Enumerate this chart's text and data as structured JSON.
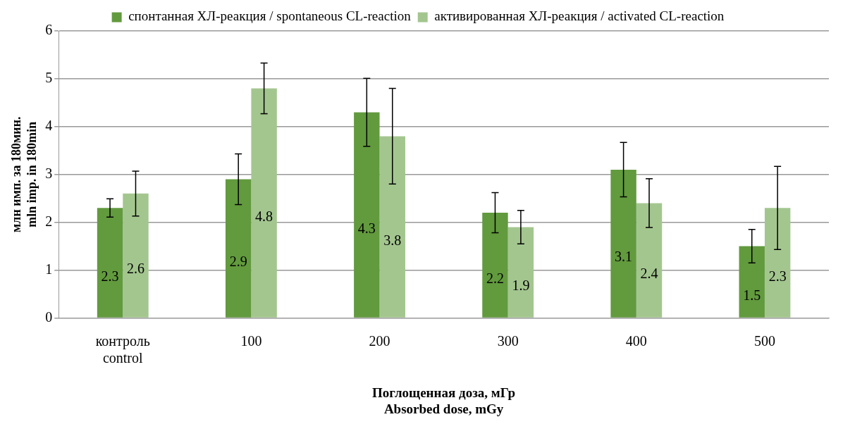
{
  "chart_data": {
    "type": "bar",
    "xlabel": "Поглощенная доза, мГр\nAbsorbed dose, mGy",
    "ylabel": "млн имп. за 180мин.\nmln imp. in 180min",
    "categories": [
      "контроль\ncontrol",
      "100",
      "200",
      "300",
      "400",
      "500"
    ],
    "series": [
      {
        "name": "спонтанная ХЛ-реакция / spontaneous CL-reaction",
        "color": "#629a3e",
        "values": [
          2.3,
          2.9,
          4.3,
          2.2,
          3.1,
          1.5
        ],
        "errors": [
          0.19,
          0.53,
          0.71,
          0.42,
          0.57,
          0.35
        ]
      },
      {
        "name": "активированная ХЛ-реакция / activated CL-reaction",
        "color": "#a3c68f",
        "values": [
          2.6,
          4.8,
          3.8,
          1.9,
          2.4,
          2.3
        ],
        "errors": [
          0.47,
          0.53,
          1.0,
          0.35,
          0.51,
          0.87
        ]
      }
    ],
    "ylim": [
      0,
      6
    ],
    "yticks": [
      0,
      1,
      2,
      3,
      4,
      5,
      6
    ],
    "grid": "y",
    "legend": "top",
    "data_labels": true
  }
}
